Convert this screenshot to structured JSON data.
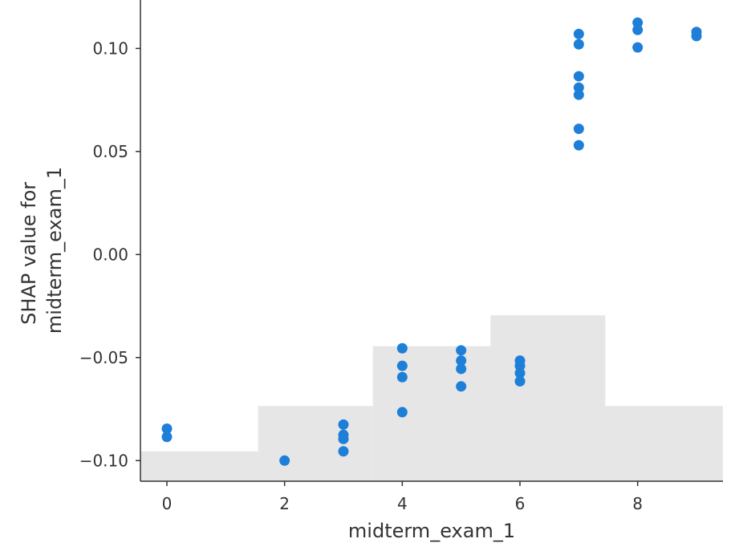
{
  "chart_data": {
    "type": "scatter",
    "xlabel": "midterm_exam_1",
    "ylabel_lines": [
      "SHAP value for",
      "midterm_exam_1"
    ],
    "xlim": [
      -0.45,
      9.45
    ],
    "ylim": [
      -0.11,
      0.1235
    ],
    "x_ticks": [
      {
        "value": 0,
        "label": "0"
      },
      {
        "value": 2,
        "label": "2"
      },
      {
        "value": 4,
        "label": "4"
      },
      {
        "value": 6,
        "label": "6"
      },
      {
        "value": 8,
        "label": "8"
      }
    ],
    "y_ticks": [
      {
        "value": -0.1,
        "label": "−0.10"
      },
      {
        "value": -0.05,
        "label": "−0.05"
      },
      {
        "value": 0.0,
        "label": "0.00"
      },
      {
        "value": 0.05,
        "label": "0.05"
      },
      {
        "value": 0.1,
        "label": "0.10"
      }
    ],
    "histogram": {
      "color": "#e6e6e6",
      "bars": [
        {
          "x0": -0.45,
          "x1": 1.55,
          "top": -0.0955
        },
        {
          "x0": 1.55,
          "x1": 3.5,
          "top": -0.0735
        },
        {
          "x0": 3.5,
          "x1": 5.5,
          "top": -0.0445
        },
        {
          "x0": 5.5,
          "x1": 7.45,
          "top": -0.0295
        },
        {
          "x0": 7.45,
          "x1": 9.45,
          "top": -0.0735
        }
      ]
    },
    "point_color": "#1e7fd8",
    "points": [
      {
        "x": 0,
        "y": -0.0845
      },
      {
        "x": 0,
        "y": -0.0885
      },
      {
        "x": 2,
        "y": -0.1
      },
      {
        "x": 3,
        "y": -0.0825
      },
      {
        "x": 3,
        "y": -0.0875
      },
      {
        "x": 3,
        "y": -0.0895
      },
      {
        "x": 3,
        "y": -0.0955
      },
      {
        "x": 4,
        "y": -0.0455
      },
      {
        "x": 4,
        "y": -0.054
      },
      {
        "x": 4,
        "y": -0.0595
      },
      {
        "x": 4,
        "y": -0.0765
      },
      {
        "x": 5,
        "y": -0.0465
      },
      {
        "x": 5,
        "y": -0.0515
      },
      {
        "x": 5,
        "y": -0.0555
      },
      {
        "x": 5,
        "y": -0.064
      },
      {
        "x": 6,
        "y": -0.0515
      },
      {
        "x": 6,
        "y": -0.054
      },
      {
        "x": 6,
        "y": -0.0575
      },
      {
        "x": 6,
        "y": -0.0615
      },
      {
        "x": 7,
        "y": 0.107
      },
      {
        "x": 7,
        "y": 0.102
      },
      {
        "x": 7,
        "y": 0.0865
      },
      {
        "x": 7,
        "y": 0.081
      },
      {
        "x": 7,
        "y": 0.0775
      },
      {
        "x": 7,
        "y": 0.061
      },
      {
        "x": 7,
        "y": 0.053
      },
      {
        "x": 8,
        "y": 0.1125
      },
      {
        "x": 8,
        "y": 0.109
      },
      {
        "x": 8,
        "y": 0.1005
      },
      {
        "x": 9,
        "y": 0.108
      },
      {
        "x": 9,
        "y": 0.106
      }
    ]
  }
}
